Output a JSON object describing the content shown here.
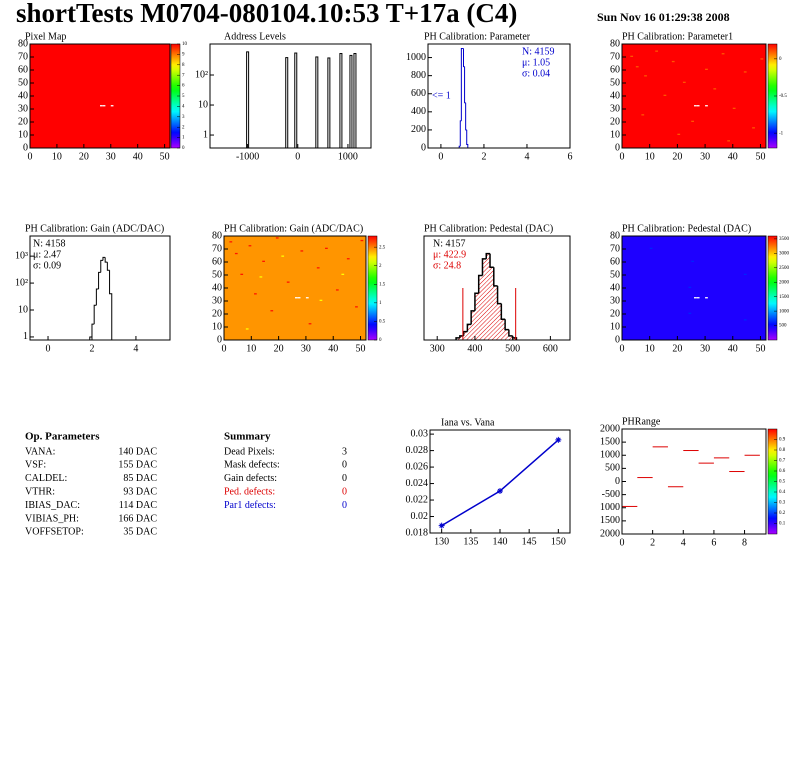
{
  "header": {
    "title": "shortTests M0704-080104.10:53 T+17a (C4)",
    "date": "Sun Nov 16 01:29:38 2008"
  },
  "chart_data": [
    {
      "type": "heatmap",
      "title": "Pixel Map",
      "xlim": [
        0,
        52
      ],
      "ylim": [
        0,
        80
      ],
      "xticks": [
        0,
        10,
        20,
        30,
        40,
        50
      ],
      "yticks": [
        0,
        10,
        20,
        30,
        40,
        50,
        60,
        70,
        80
      ],
      "zlim": [
        0,
        10
      ],
      "zticks": [
        0,
        1,
        2,
        3,
        4,
        5,
        6,
        7,
        8,
        9,
        10
      ],
      "background": 10,
      "cells": [
        [
          26,
          32,
          null
        ],
        [
          27,
          32,
          null
        ],
        [
          30,
          32,
          null
        ]
      ]
    },
    {
      "type": "spikes",
      "title": "Address Levels",
      "log_y": true,
      "xlim": [
        -1750,
        1460
      ],
      "ylim": [
        0.37,
        1080
      ],
      "xticks": [
        -1000,
        0,
        1000
      ],
      "yticks": [
        1,
        10,
        {
          "value": 100,
          "label": "10²"
        }
      ],
      "color": "#000000",
      "x": [
        -1000,
        -220,
        -40,
        380,
        620,
        860,
        1060,
        1140
      ],
      "values": [
        590,
        380,
        540,
        400,
        370,
        520,
        450,
        520
      ]
    },
    {
      "type": "histogram",
      "title": "PH Calibration: Parameter",
      "xlim": [
        -0.6,
        6
      ],
      "ylim": [
        0,
        1150
      ],
      "xticks": [
        0,
        2,
        4,
        6
      ],
      "yticks": [
        0,
        200,
        400,
        600,
        800,
        1000
      ],
      "color": "#0000cc",
      "bins": [
        0.85,
        0.9,
        0.95,
        1.0,
        1.05,
        1.1,
        1.15,
        1.2,
        1.25
      ],
      "values": [
        20,
        300,
        1100,
        1100,
        900,
        500,
        200,
        39
      ],
      "annotations": [
        {
          "text": "N: 4159",
          "color": "#0000cc"
        },
        {
          "text": "μ: 1.05",
          "color": "#0000cc"
        },
        {
          "text": "σ: 0.04",
          "color": "#0000cc"
        }
      ],
      "side_label": "<= 1",
      "side_label_color": "#0000cc"
    },
    {
      "type": "heatmap",
      "title": "PH Calibration: Parameter1",
      "xlim": [
        0,
        52
      ],
      "ylim": [
        0,
        80
      ],
      "xticks": [
        0,
        10,
        20,
        30,
        40,
        50
      ],
      "yticks": [
        0,
        10,
        20,
        30,
        40,
        50,
        60,
        70,
        80
      ],
      "zlim": [
        -1.2,
        0.2
      ],
      "zticks": [
        -1,
        -0.5,
        0
      ],
      "background": 0.2,
      "cells": [
        [
          3,
          70,
          0.1
        ],
        [
          5,
          62,
          0.1
        ],
        [
          8,
          55,
          0.1
        ],
        [
          12,
          74,
          0.1
        ],
        [
          15,
          40,
          0.1
        ],
        [
          18,
          66,
          0.1
        ],
        [
          22,
          50,
          0.1
        ],
        [
          25,
          20,
          0.1
        ],
        [
          30,
          60,
          0.1
        ],
        [
          33,
          45,
          0.1
        ],
        [
          36,
          72,
          0.1
        ],
        [
          40,
          30,
          0.1
        ],
        [
          44,
          58,
          0.1
        ],
        [
          47,
          15,
          0.1
        ],
        [
          50,
          68,
          0.1
        ],
        [
          7,
          25,
          0.1
        ],
        [
          20,
          10,
          0.1
        ],
        [
          38,
          5,
          0.1
        ],
        [
          26,
          32,
          null
        ],
        [
          27,
          32,
          null
        ],
        [
          30,
          32,
          null
        ]
      ]
    },
    {
      "type": "histogram",
      "title": "PH Calibration: Gain (ADC/DAC)",
      "log_y": true,
      "xlim": [
        -0.82,
        5.55
      ],
      "ylim": [
        0.77,
        5600
      ],
      "xticks": [
        0,
        2,
        4
      ],
      "yticks": [
        1,
        10,
        {
          "value": 100,
          "label": "10²"
        },
        {
          "value": 1000,
          "label": "10³"
        }
      ],
      "color": "#000000",
      "bins": [
        1.9,
        2.0,
        2.1,
        2.2,
        2.3,
        2.4,
        2.5,
        2.6,
        2.7,
        2.8,
        2.9
      ],
      "values": [
        1,
        3,
        15,
        60,
        250,
        700,
        900,
        600,
        300,
        40
      ],
      "annotations": [
        {
          "text": "N: 4158",
          "color": "#000000"
        },
        {
          "text": "μ: 2.47",
          "color": "#000000"
        },
        {
          "text": "σ: 0.09",
          "color": "#000000"
        }
      ]
    },
    {
      "type": "heatmap",
      "title": "PH Calibration: Gain (ADC/DAC)",
      "xlim": [
        0,
        52
      ],
      "ylim": [
        0,
        80
      ],
      "xticks": [
        0,
        10,
        20,
        30,
        40,
        50
      ],
      "yticks": [
        0,
        10,
        20,
        30,
        40,
        50,
        60,
        70,
        80
      ],
      "zlim": [
        0,
        2.8
      ],
      "zticks": [
        0,
        0.5,
        1,
        1.5,
        2,
        2.5
      ],
      "background": 2.45,
      "cells": [
        [
          2,
          75,
          2.75
        ],
        [
          4,
          66,
          2.75
        ],
        [
          6,
          50,
          2.75
        ],
        [
          9,
          72,
          2.75
        ],
        [
          11,
          35,
          2.75
        ],
        [
          14,
          60,
          2.75
        ],
        [
          17,
          22,
          2.75
        ],
        [
          19,
          78,
          2.75
        ],
        [
          23,
          44,
          2.75
        ],
        [
          28,
          68,
          2.75
        ],
        [
          31,
          12,
          2.75
        ],
        [
          34,
          55,
          2.75
        ],
        [
          37,
          70,
          2.75
        ],
        [
          41,
          38,
          2.75
        ],
        [
          45,
          62,
          2.75
        ],
        [
          48,
          25,
          2.75
        ],
        [
          50,
          76,
          2.75
        ],
        [
          8,
          8,
          2.2
        ],
        [
          13,
          48,
          2.2
        ],
        [
          21,
          64,
          2.2
        ],
        [
          35,
          30,
          2.2
        ],
        [
          43,
          50,
          2.2
        ],
        [
          26,
          32,
          null
        ],
        [
          27,
          32,
          null
        ],
        [
          30,
          32,
          null
        ]
      ]
    },
    {
      "type": "histogram",
      "title": "PH Calibration: Pedestal (DAC)",
      "xlim": [
        265,
        652
      ],
      "ylim": [
        0,
        100
      ],
      "xticks": [
        300,
        400,
        500,
        600
      ],
      "color": "#000000",
      "hatched": true,
      "fill_color": "#dd0000",
      "vlines": [
        368,
        508
      ],
      "vline_color": "#dd0000",
      "bins": [
        350,
        360,
        370,
        380,
        390,
        400,
        410,
        420,
        430,
        440,
        450,
        460,
        470,
        480,
        490,
        500,
        510
      ],
      "values": [
        2,
        4,
        8,
        15,
        28,
        45,
        62,
        78,
        83,
        70,
        52,
        35,
        20,
        10,
        4,
        2
      ],
      "annotations": [
        {
          "text": "N: 4157",
          "color": "#000000"
        },
        {
          "text": "μ: 422.9",
          "color": "#dd0000"
        },
        {
          "text": "σ: 24.8",
          "color": "#dd0000"
        }
      ]
    },
    {
      "type": "heatmap",
      "title": "PH Calibration: Pedestal (DAC)",
      "xlim": [
        0,
        52
      ],
      "ylim": [
        0,
        80
      ],
      "xticks": [
        0,
        10,
        20,
        30,
        40,
        50
      ],
      "yticks": [
        0,
        10,
        20,
        30,
        40,
        50,
        60,
        70,
        80
      ],
      "zlim": [
        0,
        3600
      ],
      "zticks": [
        500,
        1000,
        1500,
        2000,
        2500,
        3000,
        3500
      ],
      "background": 423,
      "cells": [
        [
          24,
          20,
          620
        ],
        [
          24,
          40,
          620
        ],
        [
          25,
          60,
          620
        ],
        [
          44,
          15,
          620
        ],
        [
          44,
          50,
          620
        ],
        [
          10,
          70,
          620
        ],
        [
          26,
          32,
          null
        ],
        [
          27,
          32,
          null
        ],
        [
          30,
          32,
          null
        ]
      ]
    },
    {
      "type": "line",
      "title": "Iana vs. Vana",
      "xlim": [
        128,
        152
      ],
      "ylim": [
        0.018,
        0.0305
      ],
      "xticks": [
        130,
        135,
        140,
        145,
        150
      ],
      "yticks": [
        0.018,
        0.02,
        0.022,
        0.024,
        0.026,
        0.028,
        0.03
      ],
      "color": "#0000cc",
      "x": [
        130,
        140,
        150
      ],
      "values": [
        0.0189,
        0.0231,
        0.0293
      ]
    },
    {
      "type": "histogram",
      "title": "PHRange",
      "draw_style": "segments",
      "color": "#dd0000",
      "xlim": [
        0,
        9.4
      ],
      "ylim": [
        -2000,
        2000
      ],
      "xticks": [
        0,
        2,
        4,
        6,
        8
      ],
      "yticks": [
        {
          "value": -2000,
          "label": "2000"
        },
        {
          "value": -1500,
          "label": "1500"
        },
        {
          "value": -1000,
          "label": "1000"
        },
        -500,
        0,
        500,
        1000,
        1500,
        2000
      ],
      "zlim": [
        0,
        1
      ],
      "zticks": [
        0.1,
        0.2,
        0.3,
        0.4,
        0.5,
        0.6,
        0.7,
        0.8,
        0.9
      ],
      "bins": [
        0,
        1,
        2,
        3,
        4,
        5,
        6,
        7,
        8,
        9
      ],
      "values": [
        -950,
        150,
        1320,
        -200,
        1180,
        700,
        900,
        380,
        1000
      ]
    }
  ],
  "op_parameters": {
    "title": "Op. Parameters",
    "rows": [
      [
        "VANA:",
        "140 DAC"
      ],
      [
        "VSF:",
        "155 DAC"
      ],
      [
        "CALDEL:",
        "85 DAC"
      ],
      [
        "VTHR:",
        "93 DAC"
      ],
      [
        "IBIAS_DAC:",
        "114 DAC"
      ],
      [
        "VIBIAS_PH:",
        "166 DAC"
      ],
      [
        "VOFFSETOP:",
        "35 DAC"
      ]
    ]
  },
  "summary": {
    "title": "Summary",
    "rows": [
      {
        "label": "Dead Pixels:",
        "value": 3,
        "color": "#000000"
      },
      {
        "label": "Mask defects:",
        "value": 0,
        "color": "#000000"
      },
      {
        "label": "Gain defects:",
        "value": 0,
        "color": "#000000"
      },
      {
        "label": "Ped. defects:",
        "value": 0,
        "color": "#dd0000"
      },
      {
        "label": "Par1 defects:",
        "value": 0,
        "color": "#0000cc"
      }
    ]
  }
}
